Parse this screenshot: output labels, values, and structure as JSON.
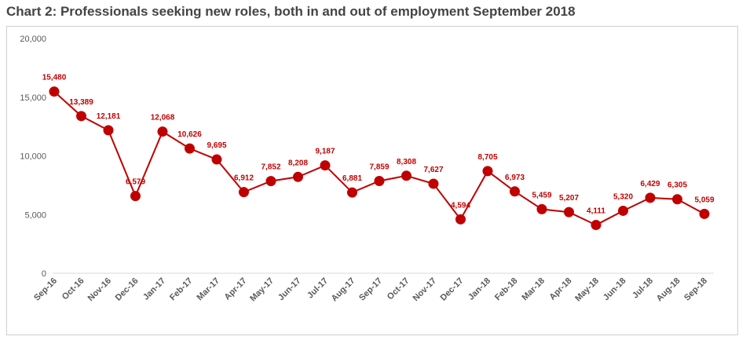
{
  "chart_data": {
    "type": "line",
    "title": "Chart 2: Professionals seeking new roles, both in and out of employment September 2018",
    "xlabel": "",
    "ylabel": "",
    "ylim": [
      0,
      20000
    ],
    "yticks": [
      "0",
      "5,000",
      "10,000",
      "15,000",
      "20,000"
    ],
    "ytick_values": [
      0,
      5000,
      10000,
      15000,
      20000
    ],
    "grid": false,
    "legend": "none",
    "color": "#c00000",
    "categories": [
      "Sep-16",
      "Oct-16",
      "Nov-16",
      "Dec-16",
      "Jan-17",
      "Feb-17",
      "Mar-17",
      "Apr-17",
      "May-17",
      "Jun-17",
      "Jul-17",
      "Aug-17",
      "Sep-17",
      "Oct-17",
      "Nov-17",
      "Dec-17",
      "Jan-18",
      "Feb-18",
      "Mar-18",
      "Apr-18",
      "May-18",
      "Jun-18",
      "Jul-18",
      "Aug-18",
      "Sep-18"
    ],
    "values": [
      15480,
      13389,
      12181,
      6579,
      12068,
      10626,
      9695,
      6912,
      7852,
      8208,
      9187,
      6881,
      7859,
      8308,
      7627,
      4594,
      8705,
      6973,
      5459,
      5207,
      4111,
      5320,
      6429,
      6305,
      5059
    ],
    "value_labels": [
      "15,480",
      "13,389",
      "12,181",
      "6,579",
      "12,068",
      "10,626",
      "9,695",
      "6,912",
      "7,852",
      "8,208",
      "9,187",
      "6,881",
      "7,859",
      "8,308",
      "7,627",
      "4,594",
      "8,705",
      "6,973",
      "5,459",
      "5,207",
      "4,111",
      "5,320",
      "6,429",
      "6,305",
      "5,059"
    ]
  }
}
